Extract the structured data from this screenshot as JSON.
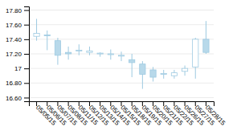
{
  "chart_data": {
    "type": "candlestick",
    "categories": [
      "05/05/15",
      "05/06/15",
      "05/07/15",
      "05/08/15",
      "05/11/15",
      "05/12/15",
      "05/13/15",
      "05/14/15",
      "05/15/15",
      "05/18/15",
      "05/19/15",
      "05/20/15",
      "05/21/15",
      "05/22/15",
      "05/26/15",
      "05/27/15",
      "05/28/15"
    ],
    "values": [
      [
        17.44,
        17.68,
        17.38,
        17.48
      ],
      [
        17.46,
        17.52,
        17.25,
        17.46
      ],
      [
        17.38,
        17.42,
        17.05,
        17.18
      ],
      [
        17.22,
        17.3,
        17.12,
        17.2
      ],
      [
        17.24,
        17.33,
        17.18,
        17.25
      ],
      [
        17.22,
        17.3,
        17.18,
        17.24
      ],
      [
        17.2,
        17.22,
        17.16,
        17.21
      ],
      [
        17.2,
        17.26,
        17.12,
        17.2
      ],
      [
        17.18,
        17.23,
        17.1,
        17.18
      ],
      [
        17.12,
        17.2,
        16.88,
        17.08
      ],
      [
        17.06,
        17.1,
        16.72,
        16.92
      ],
      [
        16.98,
        17.02,
        16.82,
        16.88
      ],
      [
        16.93,
        16.98,
        16.86,
        16.93
      ],
      [
        16.9,
        16.98,
        16.86,
        16.94
      ],
      [
        16.96,
        17.04,
        16.9,
        17.0
      ],
      [
        17.02,
        17.42,
        16.86,
        17.4
      ],
      [
        17.4,
        17.65,
        17.2,
        17.22
      ]
    ],
    "color": "#9ecae1",
    "colors": [
      "#ffffff",
      "#b8d9ea",
      "#b8d9ea",
      "#b8d9ea",
      "#ffffff",
      "#ffffff",
      "#ffffff",
      "#ffffff",
      "#ffffff",
      "#b8d9ea",
      "#b8d9ea",
      "#b8d9ea",
      "#ffffff",
      "#ffffff",
      "#ffffff",
      "#ffffff",
      "#b8d9ea"
    ],
    "ylim": [
      16.55,
      17.85
    ],
    "yticks": [
      {
        "value": 16.6,
        "label": "16.60"
      },
      {
        "value": 16.8,
        "label": "16.80"
      },
      17,
      {
        "value": 17.2,
        "label": "17.20"
      },
      {
        "value": 17.4,
        "label": "17.40"
      },
      {
        "value": 17.6,
        "label": "17.60"
      },
      {
        "value": 17.8,
        "label": "17.80"
      }
    ],
    "grid": true
  }
}
